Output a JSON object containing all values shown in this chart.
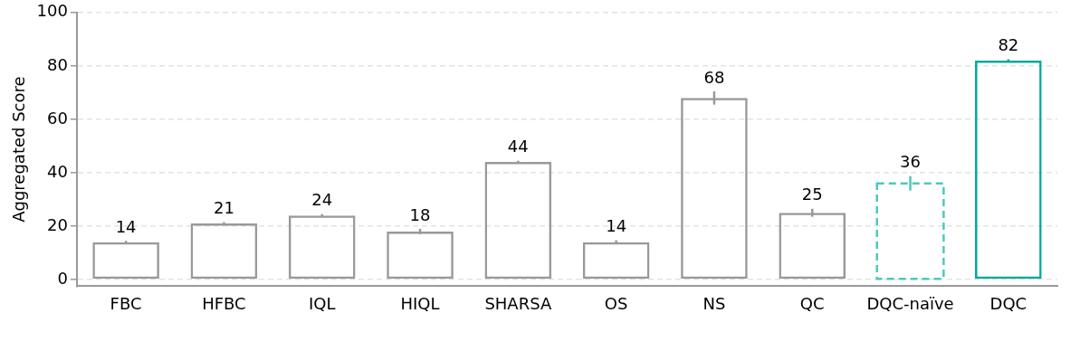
{
  "chart_data": {
    "type": "bar",
    "ylabel": "Aggregated Score",
    "categories": [
      "FBC",
      "HFBC",
      "IQL",
      "HIQL",
      "SHARSA",
      "OS",
      "NS",
      "QC",
      "DQC-naïve",
      "DQC"
    ],
    "series": [
      {
        "color": "#999999",
        "line_style": "solid",
        "values": [
          14,
          21,
          24,
          18,
          44,
          14,
          68,
          25,
          null,
          null
        ],
        "errors": [
          0.5,
          0.5,
          0.5,
          1,
          0.5,
          0.7,
          2.5,
          1.5,
          null,
          null
        ]
      },
      {
        "color": "#4fc8bd",
        "line_style": "dashed",
        "values": [
          null,
          null,
          null,
          null,
          null,
          null,
          null,
          null,
          36,
          null
        ],
        "errors": [
          null,
          null,
          null,
          null,
          null,
          null,
          null,
          null,
          2.7,
          null
        ]
      },
      {
        "color": "#00a99d",
        "line_style": "solid",
        "values": [
          null,
          null,
          null,
          null,
          null,
          null,
          null,
          null,
          null,
          82
        ],
        "errors": [
          null,
          null,
          null,
          null,
          null,
          null,
          null,
          null,
          null,
          0.5
        ]
      }
    ],
    "ylim": [
      -2.5,
      100
    ],
    "yticks": [
      0,
      20,
      40,
      60,
      80,
      100
    ],
    "grid": "y",
    "data_labels": true,
    "legend": false
  }
}
